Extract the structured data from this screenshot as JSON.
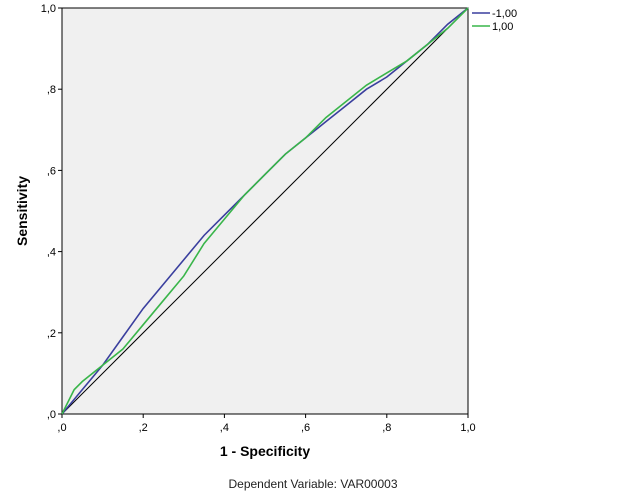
{
  "chart_data": {
    "type": "line",
    "title": "",
    "xlabel": "1 - Specificity",
    "ylabel": "Sensitivity",
    "footnote": "Dependent Variable: VAR00003",
    "xlim": [
      0,
      1
    ],
    "ylim": [
      0,
      1
    ],
    "x_ticks": [
      ",0",
      ",2",
      ",4",
      ",6",
      ",8",
      "1,0"
    ],
    "y_ticks": [
      ",0",
      ",2",
      ",4",
      ",6",
      ",8",
      "1,0"
    ],
    "grid": false,
    "legend_position": "right-top",
    "diagonal_reference": true,
    "series": [
      {
        "name": "-1,00",
        "color": "#3a3f9e",
        "points": [
          [
            0,
            0
          ],
          [
            0.05,
            0.06
          ],
          [
            0.1,
            0.12
          ],
          [
            0.15,
            0.19
          ],
          [
            0.2,
            0.26
          ],
          [
            0.25,
            0.32
          ],
          [
            0.3,
            0.38
          ],
          [
            0.35,
            0.44
          ],
          [
            0.4,
            0.49
          ],
          [
            0.45,
            0.54
          ],
          [
            0.5,
            0.59
          ],
          [
            0.55,
            0.64
          ],
          [
            0.6,
            0.68
          ],
          [
            0.65,
            0.72
          ],
          [
            0.7,
            0.76
          ],
          [
            0.75,
            0.8
          ],
          [
            0.8,
            0.83
          ],
          [
            0.85,
            0.87
          ],
          [
            0.9,
            0.91
          ],
          [
            0.95,
            0.96
          ],
          [
            1,
            1
          ]
        ]
      },
      {
        "name": "1,00",
        "color": "#39b54a",
        "points": [
          [
            0,
            0
          ],
          [
            0.03,
            0.06
          ],
          [
            0.05,
            0.08
          ],
          [
            0.1,
            0.12
          ],
          [
            0.15,
            0.16
          ],
          [
            0.2,
            0.22
          ],
          [
            0.25,
            0.28
          ],
          [
            0.3,
            0.34
          ],
          [
            0.35,
            0.42
          ],
          [
            0.4,
            0.48
          ],
          [
            0.45,
            0.54
          ],
          [
            0.5,
            0.59
          ],
          [
            0.55,
            0.64
          ],
          [
            0.6,
            0.68
          ],
          [
            0.65,
            0.73
          ],
          [
            0.7,
            0.77
          ],
          [
            0.75,
            0.81
          ],
          [
            0.8,
            0.84
          ],
          [
            0.85,
            0.87
          ],
          [
            0.9,
            0.91
          ],
          [
            0.95,
            0.95
          ],
          [
            1,
            1
          ]
        ]
      }
    ]
  }
}
